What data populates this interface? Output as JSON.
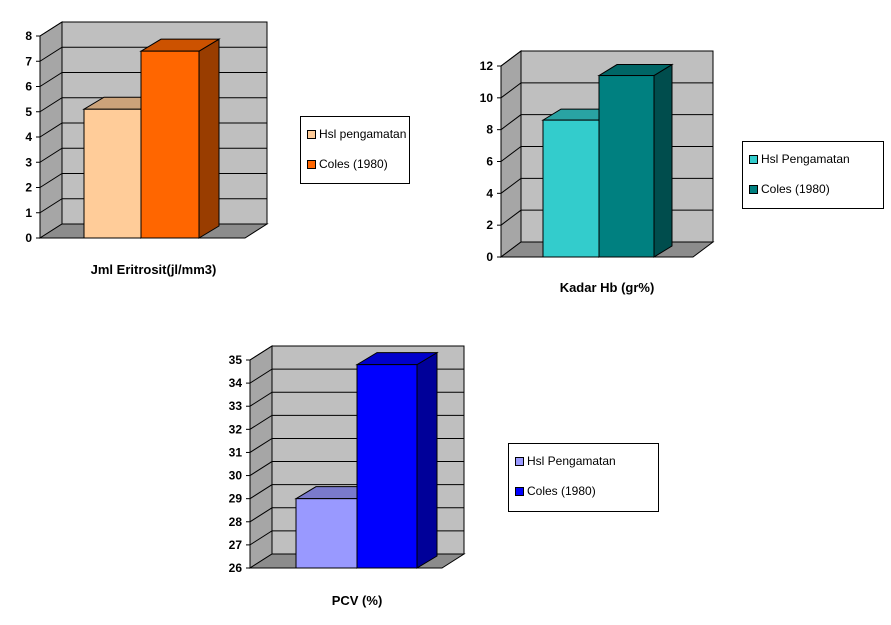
{
  "chart_data": [
    {
      "type": "bar",
      "xlabel": "Jml Eritrosit(jl/mm3)",
      "ylim": [
        0,
        8
      ],
      "yticks": [
        0,
        1,
        2,
        3,
        4,
        5,
        6,
        7,
        8
      ],
      "series": [
        {
          "name": "Hsl pengamatan",
          "values": [
            5.1
          ],
          "color": "#FFCC99"
        },
        {
          "name": "Coles (1980)",
          "values": [
            7.4
          ],
          "color": "#FF6600"
        }
      ],
      "grid": true,
      "legend": "right"
    },
    {
      "type": "bar",
      "xlabel": "Kadar Hb (gr%)",
      "ylim": [
        0,
        12
      ],
      "yticks": [
        0,
        2,
        4,
        6,
        8,
        10,
        12
      ],
      "series": [
        {
          "name": "Hsl Pengamatan",
          "values": [
            8.6
          ],
          "color": "#33CCCC"
        },
        {
          "name": "Coles (1980)",
          "values": [
            11.4
          ],
          "color": "#008080"
        }
      ],
      "grid": true,
      "legend": "right"
    },
    {
      "type": "bar",
      "xlabel": "PCV (%)",
      "ylim": [
        26,
        35
      ],
      "yticks": [
        26,
        27,
        28,
        29,
        30,
        31,
        32,
        33,
        34,
        35
      ],
      "series": [
        {
          "name": "Hsl Pengamatan",
          "values": [
            29
          ],
          "color": "#9999FF"
        },
        {
          "name": "Coles (1980)",
          "values": [
            34.8
          ],
          "color": "#0000FF"
        }
      ],
      "grid": true,
      "legend": "right"
    }
  ]
}
